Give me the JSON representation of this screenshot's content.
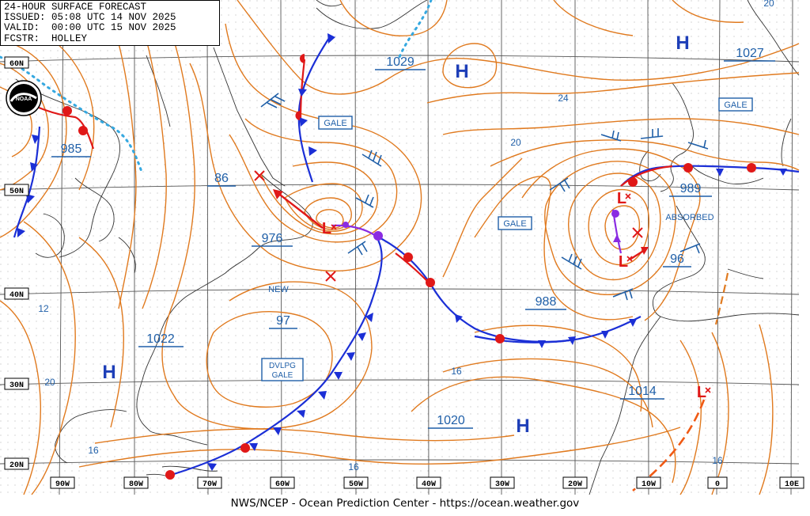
{
  "header": {
    "title": "24-HOUR SURFACE FORECAST",
    "issued": "ISSUED: 05:08 UTC 14 NOV 2025",
    "valid": "VALID:  00:00 UTC 15 NOV 2025",
    "forecaster": "FCSTR:  HOLLEY"
  },
  "footer": "NWS/NCEP - Ocean Prediction Center - https://ocean.weather.gov",
  "lat_labels": [
    "60N",
    "50N",
    "40N",
    "30N",
    "20N"
  ],
  "lon_labels": [
    "90W",
    "80W",
    "70W",
    "60W",
    "50W",
    "40W",
    "30W",
    "20W",
    "10W",
    "0",
    "10E"
  ],
  "pressure_labels": [
    "1029",
    "1027",
    "985",
    "86",
    "976",
    "97",
    "1022",
    "988",
    "989",
    "96",
    "1014",
    "1020"
  ],
  "isobar_numbers": [
    "24",
    "20",
    "20",
    "12",
    "20",
    "16",
    "16",
    "16",
    "16"
  ],
  "system_symbols": {
    "high": "H",
    "low": "L"
  },
  "warning_labels": [
    "GALE",
    "GALE",
    "GALE",
    "DVLPG GALE"
  ],
  "annotations": [
    "NEW",
    "ABSORBED"
  ],
  "colors": {
    "isobar": "#e07a1f",
    "grid": "#555555",
    "coast": "#333333",
    "high": "#1e3fb8",
    "low": "#e01818",
    "label": "#1f5fa8",
    "cold_front": "#1b2fd6",
    "warm_front": "#e01818",
    "occluded": "#8a2be2",
    "ice_edge": "#35a8e0"
  }
}
